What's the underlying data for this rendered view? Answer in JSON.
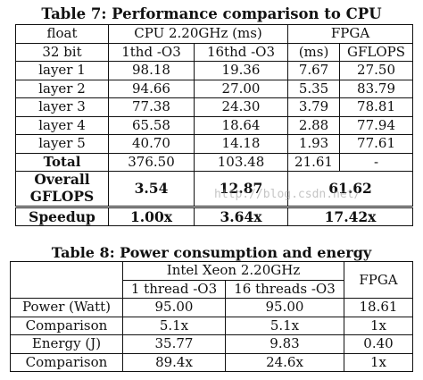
{
  "table7": {
    "caption": "Table 7: Performance comparison to CPU",
    "header1": {
      "c0": "float",
      "cpu": "CPU 2.20GHz (ms)",
      "fpga": "FPGA"
    },
    "header2": {
      "c0": "32 bit",
      "c1": "1thd -O3",
      "c2": "16thd -O3",
      "c3": "(ms)",
      "c4": "GFLOPS"
    },
    "rows": [
      {
        "label": "layer 1",
        "c1": "98.18",
        "c2": "19.36",
        "c3": "7.67",
        "c4": "27.50"
      },
      {
        "label": "layer 2",
        "c1": "94.66",
        "c2": "27.00",
        "c3": "5.35",
        "c4": "83.79"
      },
      {
        "label": "layer 3",
        "c1": "77.38",
        "c2": "24.30",
        "c3": "3.79",
        "c4": "78.81"
      },
      {
        "label": "layer 4",
        "c1": "65.58",
        "c2": "18.64",
        "c3": "2.88",
        "c4": "77.94"
      },
      {
        "label": "layer 5",
        "c1": "40.70",
        "c2": "14.18",
        "c3": "1.93",
        "c4": "77.61"
      },
      {
        "label": "Total",
        "c1": "376.50",
        "c2": "103.48",
        "c3": "21.61",
        "c4": "-"
      }
    ],
    "overall": {
      "label_line1": "Overall",
      "label_line2": "GFLOPS",
      "c1": "3.54",
      "c2": "12.87",
      "fpga": "61.62"
    },
    "speedup": {
      "label": "Speedup",
      "c1": "1.00x",
      "c2": "3.64x",
      "fpga": "17.42x"
    }
  },
  "table8": {
    "caption": "Table 8: Power consumption and energy",
    "header1": {
      "cpu": "Intel Xeon 2.20GHz",
      "fpga": "FPGA"
    },
    "header2": {
      "c1": "1 thread -O3",
      "c2": "16 threads -O3"
    },
    "rows": [
      {
        "label": "Power (Watt)",
        "c1": "95.00",
        "c2": "95.00",
        "c3": "18.61"
      },
      {
        "label": "Comparison",
        "c1": "5.1x",
        "c2": "5.1x",
        "c3": "1x"
      },
      {
        "label": "Energy (J)",
        "c1": "35.77",
        "c2": "9.83",
        "c3": "0.40"
      },
      {
        "label": "Comparison",
        "c1": "89.4x",
        "c2": "24.6x",
        "c3": "1x"
      }
    ]
  },
  "watermark": "http://blog.csdn.net/"
}
